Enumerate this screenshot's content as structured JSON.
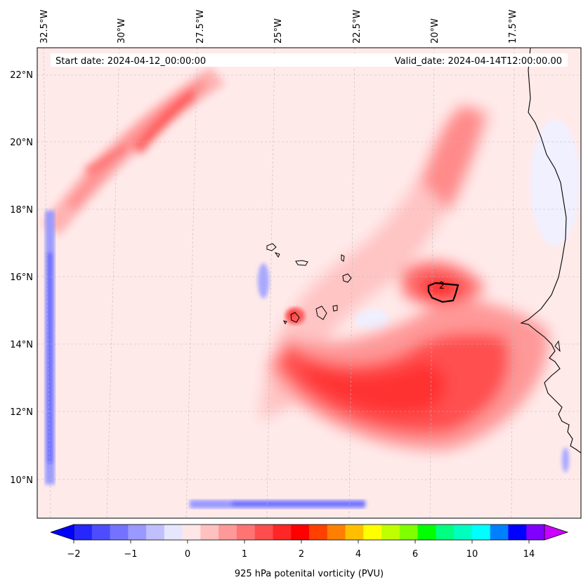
{
  "header": {
    "start_date": "Start date: 2024-04-12_00:00:00",
    "valid_date": "Valid_date: 2024-04-14T12:00:00.00"
  },
  "map": {
    "lon_labels": [
      "32.5°W",
      "30°W",
      "27.5°W",
      "25°W",
      "22.5°W",
      "20°W",
      "17.5°W"
    ],
    "lat_labels": [
      "22°N",
      "20°N",
      "18°N",
      "16°N",
      "14°N",
      "12°N",
      "10°N"
    ],
    "contour_label": "2",
    "colors": {
      "high": "#ff1a1a",
      "mid": "#ff7f7f",
      "low": "#ffd6d6",
      "base": "#ffeaea",
      "neg": "#6b6bff"
    }
  },
  "colorbar": {
    "tick_labels": [
      "−2",
      "−1",
      "0",
      "1",
      "2",
      "4",
      "6",
      "10",
      "14"
    ],
    "label": "925 hPa potenital vorticity (PVU)",
    "colors": [
      "#0000ff",
      "#2626ff",
      "#4d4dff",
      "#7373ff",
      "#9999ff",
      "#c0c0ff",
      "#e6e6ff",
      "#ffe6e6",
      "#ffc0c0",
      "#ff9999",
      "#ff7373",
      "#ff4d4d",
      "#ff2626",
      "#ff0000",
      "#ff4000",
      "#ff8000",
      "#ffbf00",
      "#ffff00",
      "#bfff00",
      "#80ff00",
      "#00ff00",
      "#00ff80",
      "#00ffbf",
      "#00ffff",
      "#0080ff",
      "#0000ff",
      "#8000ff",
      "#cc00ff"
    ]
  }
}
